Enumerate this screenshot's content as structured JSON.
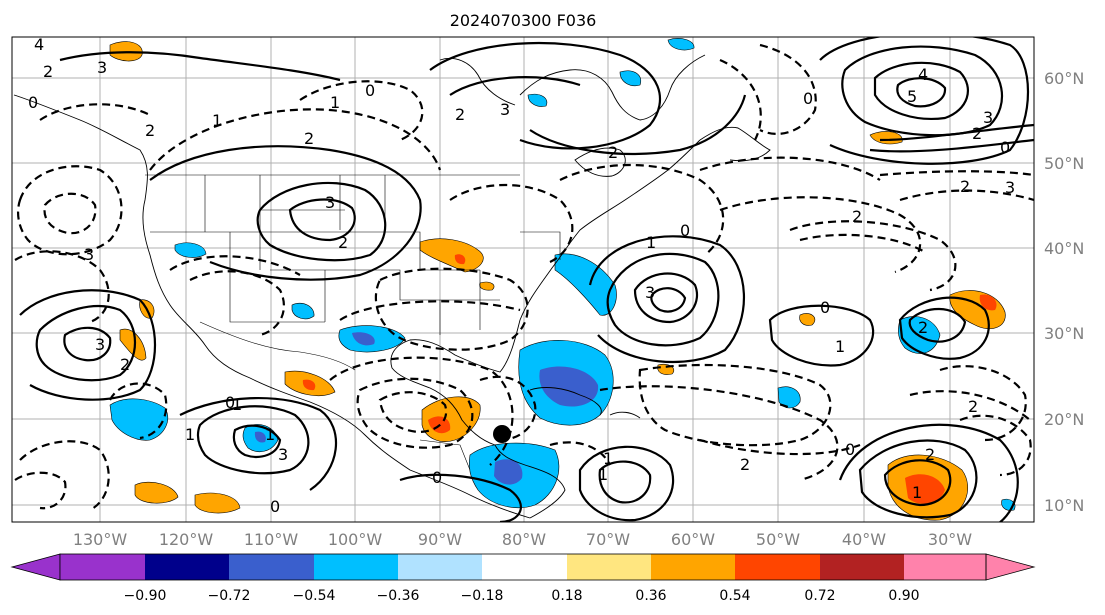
{
  "title": "2024070300 F036",
  "map": {
    "lon_labels": [
      "130°W",
      "120°W",
      "110°W",
      "100°W",
      "90°W",
      "80°W",
      "70°W",
      "60°W",
      "50°W",
      "40°W",
      "30°W"
    ],
    "lat_labels": [
      "60°N",
      "50°N",
      "40°N",
      "30°N",
      "20°N",
      "10°N"
    ],
    "marker": "storm-center-dot",
    "contour_labels": [
      "4",
      "3",
      "2",
      "0",
      "1",
      "2",
      "3",
      "0",
      "2",
      "1",
      "3",
      "2",
      "2",
      "3",
      "2",
      "4",
      "5",
      "3",
      "2",
      "0",
      "2",
      "3",
      "0",
      "2",
      "1",
      "3",
      "3",
      "0",
      "1",
      "2",
      "0",
      "2",
      "1",
      "0",
      "1",
      "3",
      "1",
      "0",
      "2",
      "1",
      "0",
      "1",
      "2",
      "1",
      "0",
      "2"
    ]
  },
  "colorbar": {
    "ticks": [
      "−0.90",
      "−0.72",
      "−0.54",
      "−0.36",
      "−0.18",
      "0.18",
      "0.36",
      "0.54",
      "0.72",
      "0.90"
    ],
    "colors": [
      "#9932cc",
      "#00008b",
      "#3a5fcd",
      "#00bfff",
      "#b0e2ff",
      "#ffffff",
      "#ffe680",
      "#ffa500",
      "#ff4500",
      "#b22222",
      "#ff82ab"
    ]
  }
}
